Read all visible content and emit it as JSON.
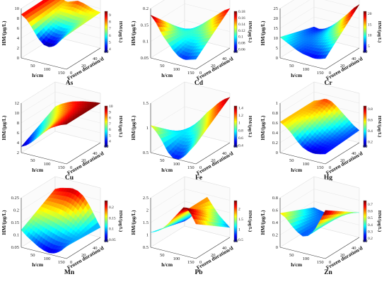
{
  "chart_data": [
    {
      "type": "surface",
      "element": "As",
      "ylabel": "HM/(μg/L)",
      "xlabel": "h/cm",
      "zlabel": "Frozen duration/d",
      "colorbar_label": "HM/(μg/L)",
      "zlim": [
        0,
        10
      ],
      "z_ticks": [
        "0",
        "2",
        "4",
        "6",
        "8",
        "10"
      ],
      "h_ticks": [
        "50",
        "100",
        "150"
      ],
      "d_ticks": [
        "0",
        "20",
        "40",
        "60"
      ],
      "cb_ticks": [
        "4",
        "5",
        "6",
        "7",
        "8",
        "9"
      ],
      "left_edge": [
        8.8,
        8.0,
        6.5,
        4.8,
        3.8,
        3.6,
        4.2,
        5.6,
        6.8
      ],
      "right_edge": [
        9.0,
        8.2,
        7.6,
        8.0,
        8.4,
        8.2,
        7.8,
        7.4,
        7.2
      ],
      "vmin": 3.5,
      "vmax": 9.5
    },
    {
      "type": "surface",
      "element": "Cd",
      "ylabel": "HM/(μg/L)",
      "xlabel": "h/cm",
      "zlabel": "Frozen duration/d",
      "colorbar_label": "HM/(μg/L)",
      "zlim": [
        0.05,
        0.2
      ],
      "z_ticks": [
        "0.05",
        "0.1",
        "0.15",
        "0.2"
      ],
      "h_ticks": [
        "50",
        "100",
        "150"
      ],
      "d_ticks": [
        "0",
        "20",
        "40",
        "60"
      ],
      "cb_ticks": [
        "0.06",
        "0.08",
        "0.1",
        "0.12",
        "0.14",
        "0.16",
        "0.18"
      ],
      "left_edge": [
        0.18,
        0.16,
        0.13,
        0.11,
        0.09,
        0.075,
        0.07,
        0.075,
        0.08
      ],
      "right_edge": [
        0.07,
        0.075,
        0.085,
        0.1,
        0.115,
        0.13,
        0.145,
        0.16,
        0.17
      ],
      "vmin": 0.05,
      "vmax": 0.18
    },
    {
      "type": "surface",
      "element": "Cr",
      "ylabel": "HM/(μg/L)",
      "xlabel": "h/cm",
      "zlabel": "Frozen duration/d",
      "colorbar_label": "HM/(μg/L)",
      "zlim": [
        0,
        25
      ],
      "z_ticks": [
        "0",
        "5",
        "10",
        "15",
        "20",
        "25"
      ],
      "h_ticks": [
        "50",
        "100",
        "150"
      ],
      "d_ticks": [
        "0",
        "20",
        "40",
        "60"
      ],
      "cb_ticks": [
        "5",
        "10",
        "15",
        "20"
      ],
      "left_edge": [
        10.5,
        9,
        7.5,
        6,
        5,
        4.5,
        4,
        4.5,
        5.5
      ],
      "right_edge": [
        5,
        4.5,
        5.5,
        7.5,
        10,
        13,
        16,
        19.5,
        22
      ],
      "vmin": 2,
      "vmax": 21
    },
    {
      "type": "surface",
      "element": "Cu",
      "ylabel": "HM/(μg/L)",
      "xlabel": "h/cm",
      "zlabel": "Frozen duration/d",
      "colorbar_label": "HM/(μg/L)",
      "zlim": [
        2,
        12
      ],
      "z_ticks": [
        "2",
        "4",
        "6",
        "8",
        "10",
        "12"
      ],
      "h_ticks": [
        "50",
        "100",
        "150"
      ],
      "d_ticks": [
        "0",
        "20",
        "40",
        "60"
      ],
      "cb_ticks": [
        "4",
        "5",
        "6",
        "7",
        "8",
        "9",
        "10"
      ],
      "left_edge": [
        3.2,
        3.8,
        4.8,
        6.0,
        7.2,
        8.3,
        9.0,
        9.6,
        10.0
      ],
      "right_edge": [
        7.0,
        7.8,
        8.4,
        8.9,
        9.2,
        9.5,
        9.7,
        9.9,
        10.0
      ],
      "vmin": 3,
      "vmax": 10
    },
    {
      "type": "surface",
      "element": "Fe",
      "ylabel": "HM/(μg/L)",
      "xlabel": "h/cm",
      "zlabel": "Frozen duration/d",
      "colorbar_label": "HM/(μg/L)",
      "zlim": [
        0.5,
        1.5
      ],
      "z_ticks": [
        "0.5",
        "1",
        "1.5"
      ],
      "h_ticks": [
        "50",
        "100",
        "150"
      ],
      "d_ticks": [
        "0",
        "20",
        "40",
        "60"
      ],
      "cb_ticks": [
        "0.4",
        "0.6",
        "0.8",
        "1",
        "1.2",
        "1.4"
      ],
      "left_edge": [
        1.05,
        0.95,
        0.8,
        0.6,
        0.5,
        0.5,
        0.6,
        0.75,
        0.9
      ],
      "right_edge": [
        0.45,
        0.55,
        0.7,
        0.85,
        1.0,
        1.12,
        1.25,
        1.35,
        1.42
      ],
      "vmin": 0.35,
      "vmax": 1.45
    },
    {
      "type": "surface",
      "element": "Hg",
      "ylabel": "HM/(μg/L)",
      "xlabel": "h/cm",
      "zlabel": "Frozen duration/d",
      "colorbar_label": "HM/(μg/L)",
      "zlim": [
        0,
        1
      ],
      "z_ticks": [
        "0",
        "0.2",
        "0.4",
        "0.6",
        "0.8",
        "1"
      ],
      "h_ticks": [
        "50",
        "100",
        "150"
      ],
      "d_ticks": [
        "0",
        "20",
        "40",
        "60"
      ],
      "cb_ticks": [
        "0.2",
        "0.4",
        "0.6",
        "0.8"
      ],
      "left_edge": [
        0.62,
        0.55,
        0.45,
        0.32,
        0.22,
        0.17,
        0.15,
        0.17,
        0.2
      ],
      "right_edge": [
        0.62,
        0.66,
        0.72,
        0.7,
        0.62,
        0.52,
        0.42,
        0.32,
        0.25
      ],
      "vmin": 0.1,
      "vmax": 0.85
    },
    {
      "type": "surface",
      "element": "Mn",
      "ylabel": "HM/(μg/L)",
      "xlabel": "h/cm",
      "zlabel": "Frozen duration/d",
      "colorbar_label": "HM/(μg/L)",
      "zlim": [
        0.05,
        0.25
      ],
      "z_ticks": [
        "0.05",
        "0.1",
        "0.15",
        "0.2",
        "0.25"
      ],
      "h_ticks": [
        "50",
        "100",
        "150"
      ],
      "d_ticks": [
        "0",
        "20",
        "40",
        "60"
      ],
      "cb_ticks": [
        "0.05",
        "0.1",
        "0.15",
        "0.2"
      ],
      "left_edge": [
        0.12,
        0.1,
        0.085,
        0.07,
        0.06,
        0.055,
        0.06,
        0.075,
        0.1
      ],
      "right_edge": [
        0.2,
        0.21,
        0.215,
        0.22,
        0.215,
        0.2,
        0.17,
        0.13,
        0.09
      ],
      "vmin": 0.04,
      "vmax": 0.23
    },
    {
      "type": "surface",
      "element": "Pb",
      "ylabel": "HM/(μg/L)",
      "xlabel": "h/cm",
      "zlabel": "Frozen duration/d",
      "colorbar_label": "HM/(μg/L)",
      "zlim": [
        0.5,
        2.5
      ],
      "z_ticks": [
        "0.5",
        "1",
        "1.5",
        "2",
        "2.5"
      ],
      "h_ticks": [
        "50",
        "100",
        "150"
      ],
      "d_ticks": [
        "0",
        "20",
        "40",
        "60"
      ],
      "cb_ticks": [
        "0.5",
        "1",
        "1.5",
        "2"
      ],
      "left_edge": [
        1.1,
        1.2,
        1.35,
        1.6,
        1.9,
        2.2,
        2.5,
        2.3,
        1.9
      ],
      "right_edge": [
        0.7,
        0.9,
        1.2,
        1.5,
        1.9,
        1.6,
        1.3,
        1.1,
        0.9
      ],
      "vmin": 0.4,
      "vmax": 2.4
    },
    {
      "type": "surface",
      "element": "Zn",
      "ylabel": "HM/(μg/L)",
      "xlabel": "h/cm",
      "zlabel": "Frozen duration/d",
      "colorbar_label": "HM/(μg/L)",
      "zlim": [
        0,
        0.8
      ],
      "z_ticks": [
        "0",
        "0.2",
        "0.4",
        "0.6",
        "0.8"
      ],
      "h_ticks": [
        "50",
        "100",
        "150"
      ],
      "d_ticks": [
        "0",
        "20",
        "40",
        "60"
      ],
      "cb_ticks": [
        "0.2",
        "0.3",
        "0.4",
        "0.5",
        "0.6",
        "0.7"
      ],
      "left_edge": [
        0.55,
        0.5,
        0.4,
        0.32,
        0.27,
        0.3,
        0.4,
        0.58,
        0.78
      ],
      "right_edge": [
        0.3,
        0.28,
        0.26,
        0.27,
        0.3,
        0.33,
        0.36,
        0.38,
        0.4
      ],
      "vmin": 0.15,
      "vmax": 0.75
    }
  ]
}
